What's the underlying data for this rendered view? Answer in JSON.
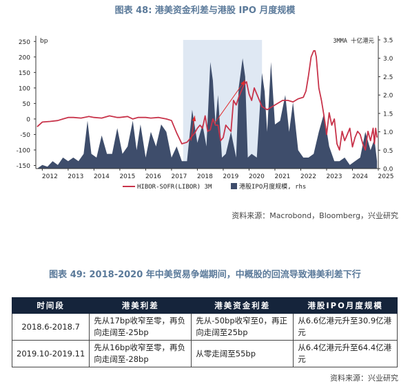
{
  "figure1": {
    "title": "图表 48: 港美资金利差与港股 IPO 月度规模",
    "source": "资料来源：Macrobond，Bloomberg，兴业研究"
  },
  "chart_data": {
    "type": "line+area",
    "left_axis": {
      "unit": "bp",
      "ticks": [
        250,
        200,
        150,
        100,
        50,
        0,
        -50,
        -100,
        -150
      ],
      "range": [
        -160,
        255
      ]
    },
    "right_axis": {
      "unit": "3MMA 十亿港元",
      "ticks": [
        3.5,
        3.0,
        2.5,
        2.0,
        1.5,
        1.0,
        0.5,
        0.0
      ],
      "range": [
        0,
        3.5
      ]
    },
    "x_ticks": [
      "2012",
      "2013",
      "2014",
      "2015",
      "2016",
      "2017",
      "2018",
      "2019",
      "2020",
      "2021",
      "2022",
      "2023",
      "2024",
      "2025"
    ],
    "x_range": [
      2011.75,
      2025.0
    ],
    "shaded_period": [
      2017.45,
      2020.5
    ],
    "arrows": [
      {
        "from": [
          2017.75,
          -70
        ],
        "to": [
          2017.9,
          10
        ]
      },
      {
        "from": [
          2018.7,
          -10
        ],
        "to": [
          2019.85,
          125
        ]
      }
    ],
    "legend": [
      "HIBOR-SOFR(LIBOR) 3M",
      "港股IPO月度规模, rhs"
    ],
    "colors": {
      "line": "#c8334a",
      "area": "#3e4d6b",
      "shade": "#dfe8f3",
      "arrow": "#e22b2b"
    },
    "series": [
      {
        "name": "HIBOR-SOFR(LIBOR) 3M",
        "axis": "left",
        "x": [
          2011.8,
          2012.0,
          2012.3,
          2012.6,
          2012.8,
          2013.0,
          2013.2,
          2013.5,
          2013.8,
          2014.0,
          2014.3,
          2014.6,
          2014.9,
          2015.0,
          2015.3,
          2015.5,
          2015.7,
          2016.0,
          2016.2,
          2016.5,
          2016.8,
          2017.0,
          2017.2,
          2017.4,
          2017.6,
          2017.7,
          2017.8,
          2017.9,
          2018.0,
          2018.1,
          2018.2,
          2018.3,
          2018.4,
          2018.5,
          2018.6,
          2018.7,
          2018.8,
          2018.9,
          2019.0,
          2019.1,
          2019.3,
          2019.4,
          2019.5,
          2019.6,
          2019.7,
          2019.8,
          2019.9,
          2020.0,
          2020.1,
          2020.2,
          2020.3,
          2020.5,
          2020.7,
          2020.9,
          2021.1,
          2021.3,
          2021.5,
          2021.7,
          2021.9,
          2022.1,
          2022.2,
          2022.3,
          2022.4,
          2022.5,
          2022.55,
          2022.6,
          2022.7,
          2022.8,
          2022.9,
          2023.0,
          2023.1,
          2023.2,
          2023.3,
          2023.4,
          2023.5,
          2023.6,
          2023.7,
          2023.8,
          2023.9,
          2024.0,
          2024.1,
          2024.2,
          2024.3,
          2024.4,
          2024.5,
          2024.6,
          2024.7,
          2024.8,
          2024.85,
          2024.9,
          2024.95
        ],
        "values": [
          -25,
          -10,
          -8,
          -5,
          0,
          5,
          5,
          3,
          8,
          5,
          3,
          10,
          5,
          5,
          8,
          0,
          5,
          5,
          3,
          5,
          0,
          -5,
          -45,
          -80,
          -75,
          -65,
          -55,
          -45,
          -30,
          -20,
          -30,
          10,
          -40,
          -35,
          0,
          -20,
          -20,
          -70,
          -60,
          -20,
          -40,
          60,
          45,
          70,
          90,
          110,
          120,
          80,
          60,
          100,
          80,
          40,
          30,
          40,
          50,
          60,
          60,
          55,
          65,
          70,
          90,
          140,
          200,
          220,
          220,
          200,
          100,
          60,
          10,
          -50,
          20,
          -20,
          0,
          -80,
          -100,
          -40,
          -70,
          -50,
          -30,
          -90,
          -60,
          -40,
          -50,
          -80,
          -100,
          -40,
          -70,
          -30,
          -80,
          -30,
          -60
        ]
      },
      {
        "name": "港股IPO月度规模, rhs",
        "axis": "right",
        "x": [
          2011.8,
          2012.0,
          2012.2,
          2012.4,
          2012.6,
          2012.8,
          2013.0,
          2013.2,
          2013.4,
          2013.6,
          2013.75,
          2013.9,
          2014.1,
          2014.3,
          2014.5,
          2014.7,
          2014.9,
          2015.1,
          2015.3,
          2015.5,
          2015.65,
          2015.8,
          2016.0,
          2016.2,
          2016.4,
          2016.6,
          2016.8,
          2017.0,
          2017.2,
          2017.4,
          2017.6,
          2017.8,
          2018.0,
          2018.2,
          2018.35,
          2018.5,
          2018.6,
          2018.7,
          2018.8,
          2018.95,
          2019.1,
          2019.3,
          2019.5,
          2019.6,
          2019.75,
          2019.85,
          2019.95,
          2020.1,
          2020.3,
          2020.5,
          2020.6,
          2020.7,
          2020.85,
          2021.0,
          2021.2,
          2021.4,
          2021.55,
          2021.7,
          2021.9,
          2022.1,
          2022.3,
          2022.5,
          2022.7,
          2022.9,
          2023.1,
          2023.3,
          2023.5,
          2023.7,
          2023.9,
          2024.1,
          2024.3,
          2024.5,
          2024.7,
          2024.85,
          2024.95
        ],
        "values": [
          0.0,
          0.1,
          0.05,
          0.2,
          0.1,
          0.3,
          0.2,
          0.3,
          0.2,
          0.4,
          1.3,
          0.4,
          0.3,
          0.9,
          0.4,
          0.4,
          1.1,
          0.4,
          0.6,
          1.3,
          0.5,
          1.2,
          0.3,
          1.0,
          0.6,
          1.2,
          1.0,
          0.3,
          0.6,
          0.2,
          0.2,
          1.6,
          0.7,
          1.2,
          0.6,
          2.9,
          2.4,
          1.2,
          2.0,
          0.3,
          0.4,
          1.0,
          0.3,
          2.2,
          3.0,
          2.5,
          0.3,
          0.4,
          0.3,
          2.6,
          2.1,
          1.0,
          2.9,
          1.2,
          1.3,
          2.0,
          1.0,
          1.8,
          0.5,
          0.3,
          0.3,
          0.4,
          1.0,
          1.5,
          0.6,
          0.2,
          0.2,
          0.3,
          0.1,
          0.2,
          0.3,
          1.0,
          0.5,
          0.8,
          0.2
        ]
      }
    ]
  },
  "figure2": {
    "title": "图表 49: 2018-2020 年中美贸易争端期间，中概股的回流导致港美利差下行",
    "source": "资料来源：兴业研究",
    "headers": [
      "时间段",
      "港美利差",
      "港美资金利差",
      "港股IPO月度规模"
    ],
    "rows": [
      [
        "2018.6-2018.7",
        "先从17bp收窄至零，再负向走阔至-25bp",
        "先从-50bp收窄至0，再正向走阔至25bp",
        "从6.6亿港元升至30.9亿港元"
      ],
      [
        "2019.10-2019.11",
        "先从16bp收窄至零，再负向走阔至-28bp",
        "从零走阔至55bp",
        "从6.4亿港元升至64.4亿港元"
      ]
    ]
  }
}
